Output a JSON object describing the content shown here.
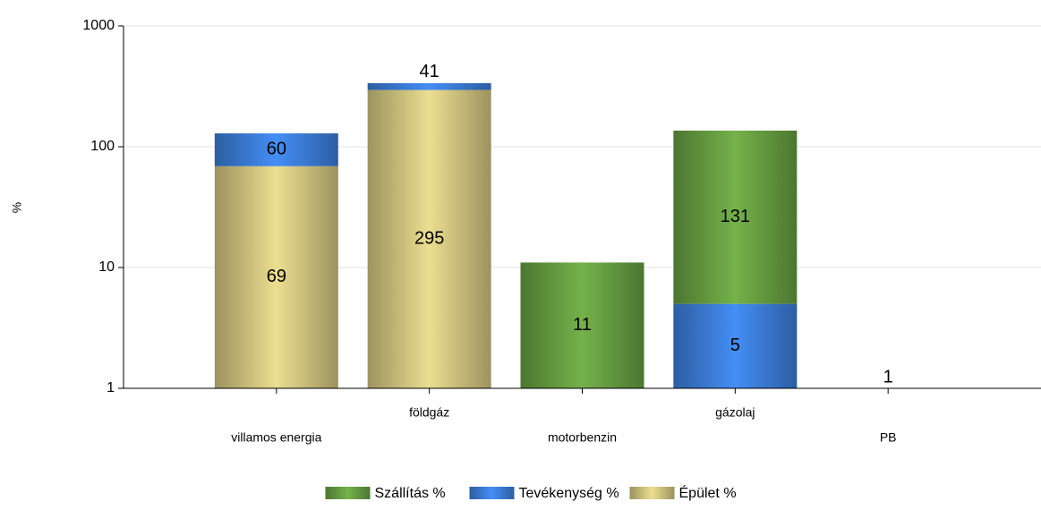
{
  "chart_data": {
    "type": "stacked_bar",
    "y_label": "%",
    "categories": [
      "villamos energia",
      "földgáz",
      "motorbenzin",
      "gázolaj",
      "PB"
    ],
    "series": [
      {
        "name": "Épület %",
        "color": "#c8bc7a",
        "values": [
          69,
          295,
          null,
          null,
          null
        ]
      },
      {
        "name": "Tevékenység %",
        "color": "#3a78d0",
        "values": [
          60,
          41,
          null,
          5,
          null
        ]
      },
      {
        "name": "Szállítás %",
        "color": "#62973f",
        "values": [
          null,
          null,
          11,
          131,
          1
        ]
      }
    ],
    "legend_order": [
      2,
      1,
      0
    ],
    "ylim": [
      1,
      1000
    ],
    "yticks": [
      1,
      10,
      100,
      1000
    ],
    "log_scale": true,
    "grid": true,
    "legend": "bottom"
  }
}
